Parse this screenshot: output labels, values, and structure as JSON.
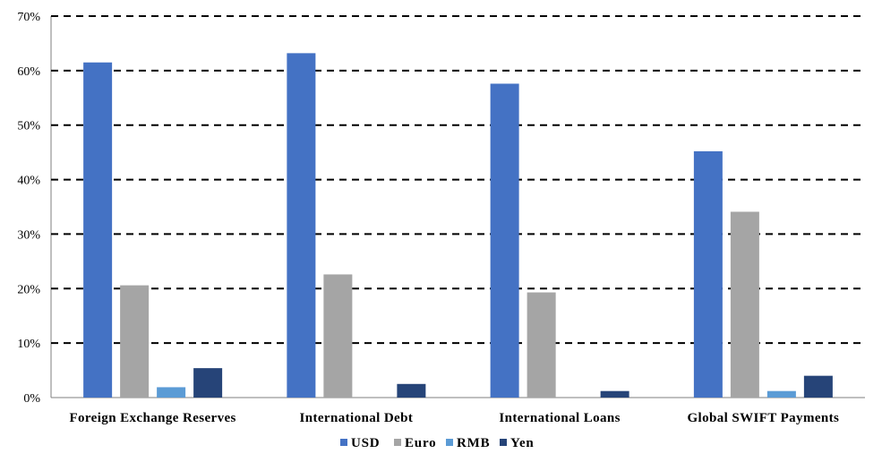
{
  "chart_data": {
    "type": "bar",
    "title": "",
    "xlabel": "",
    "ylabel": "",
    "categories": [
      "Foreign Exchange Reserves",
      "International Debt",
      "International Loans",
      "Global SWIFT Payments"
    ],
    "series": [
      {
        "name": "USD",
        "color": "#4472C4",
        "values": [
          61.5,
          63.2,
          57.6,
          45.2
        ]
      },
      {
        "name": "Euro",
        "color": "#A5A5A5",
        "values": [
          20.6,
          22.6,
          19.3,
          34.1
        ]
      },
      {
        "name": "RMB",
        "color": "#5B9BD5",
        "values": [
          1.9,
          0,
          0,
          1.2
        ]
      },
      {
        "name": "Yen",
        "color": "#264478",
        "values": [
          5.4,
          2.5,
          1.2,
          4.0
        ]
      }
    ],
    "ylim": [
      0,
      70
    ],
    "yticks": [
      0,
      10,
      20,
      30,
      40,
      50,
      60,
      70
    ],
    "ytick_labels": [
      "0%",
      "10%",
      "20%",
      "30%",
      "40%",
      "50%",
      "60%",
      "70%"
    ],
    "grid": "horizontal dashed",
    "legend_position": "bottom-center"
  }
}
